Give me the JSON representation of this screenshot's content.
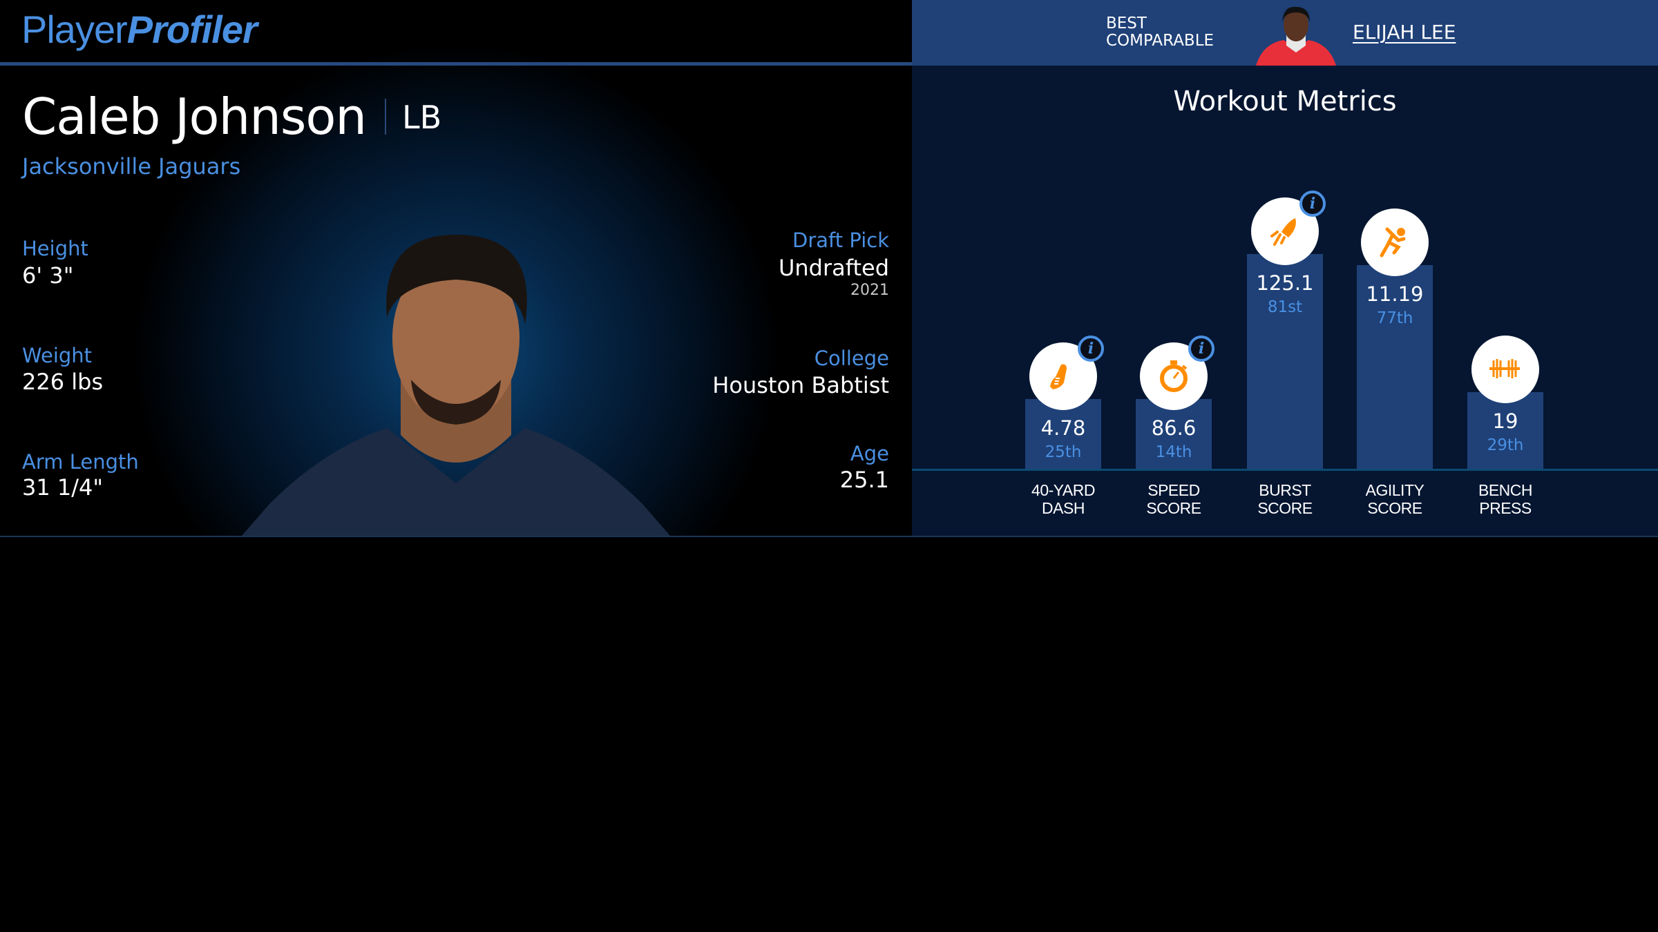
{
  "brand": {
    "part1": "Player",
    "part2": "Profiler"
  },
  "player": {
    "name": "Caleb Johnson",
    "position": "LB",
    "team": "Jacksonville Jaguars"
  },
  "bio_left": [
    {
      "label": "Height",
      "value": "6' 3\""
    },
    {
      "label": "Weight",
      "value": "226 lbs"
    },
    {
      "label": "Arm Length",
      "value": "31 1/4\""
    }
  ],
  "bio_right": {
    "draft": {
      "label": "Draft Pick",
      "value": "Undrafted",
      "year": "2021"
    },
    "college": {
      "label": "College",
      "value": "Houston Babtist"
    },
    "age": {
      "label": "Age",
      "value": "25.1"
    }
  },
  "comparable": {
    "label_line1": "BEST",
    "label_line2": "COMPARABLE",
    "name": "ELIJAH LEE"
  },
  "workout": {
    "title": "Workout Metrics",
    "colors": {
      "bar": "#1f4178",
      "icon": "#ff8c00",
      "percentile": "#4a90e2"
    },
    "metrics": [
      {
        "label1": "40-YARD",
        "label2": "DASH",
        "value": "4.78",
        "percentile_text": "25th",
        "percentile": 25,
        "icon": "running-shoe-icon",
        "info": true
      },
      {
        "label1": "SPEED",
        "label2": "SCORE",
        "value": "86.6",
        "percentile_text": "14th",
        "percentile": 14,
        "icon": "stopwatch-icon",
        "info": true
      },
      {
        "label1": "BURST",
        "label2": "SCORE",
        "value": "125.1",
        "percentile_text": "81st",
        "percentile": 81,
        "icon": "rocket-icon",
        "info": true
      },
      {
        "label1": "AGILITY",
        "label2": "SCORE",
        "value": "11.19",
        "percentile_text": "77th",
        "percentile": 77,
        "icon": "runner-icon",
        "info": false
      },
      {
        "label1": "BENCH",
        "label2": "PRESS",
        "value": "19",
        "percentile_text": "29th",
        "percentile": 29,
        "icon": "barbell-icon",
        "info": false
      }
    ]
  }
}
